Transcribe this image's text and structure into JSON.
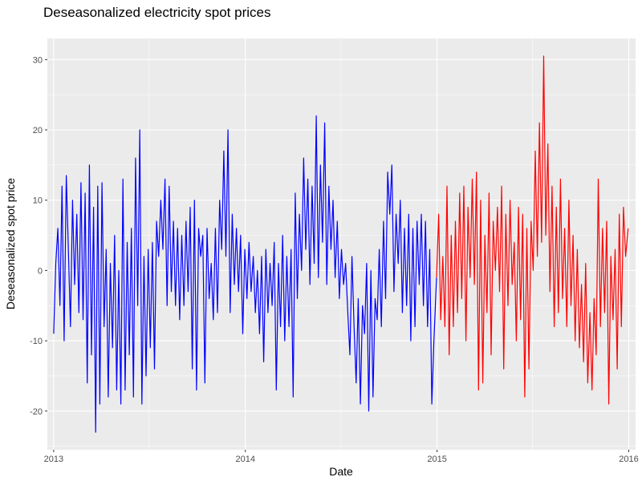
{
  "chart_data": {
    "type": "line",
    "title": "Deseasonalized electricity spot prices",
    "xlabel": "Date",
    "ylabel": "Deseasonalized spot price",
    "x_ticks": [
      "2013",
      "2014",
      "2015",
      "2016"
    ],
    "y_ticks": [
      "-20",
      "-10",
      "0",
      "10",
      "20",
      "30"
    ],
    "xlim": [
      "2012-12-20",
      "2016-01-14"
    ],
    "ylim": [
      -25.5,
      33
    ],
    "grid": true,
    "background": "#ebebeb",
    "series": [
      {
        "color": "#0000ff",
        "points": [
          [
            "2013-01-01",
            -9
          ],
          [
            "2013-01-05",
            1
          ],
          [
            "2013-01-09",
            6
          ],
          [
            "2013-01-13",
            -5
          ],
          [
            "2013-01-17",
            12
          ],
          [
            "2013-01-21",
            -10
          ],
          [
            "2013-01-25",
            13.5
          ],
          [
            "2013-01-29",
            3
          ],
          [
            "2013-02-02",
            -8
          ],
          [
            "2013-02-06",
            10
          ],
          [
            "2013-02-10",
            -2
          ],
          [
            "2013-02-14",
            8
          ],
          [
            "2013-02-18",
            -6
          ],
          [
            "2013-02-22",
            12.5
          ],
          [
            "2013-02-26",
            -7
          ],
          [
            "2013-03-02",
            11
          ],
          [
            "2013-03-06",
            -16
          ],
          [
            "2013-03-10",
            15
          ],
          [
            "2013-03-14",
            -12
          ],
          [
            "2013-03-18",
            9
          ],
          [
            "2013-03-22",
            -23
          ],
          [
            "2013-03-26",
            12
          ],
          [
            "2013-03-30",
            -19
          ],
          [
            "2013-04-03",
            12.5
          ],
          [
            "2013-04-07",
            -8
          ],
          [
            "2013-04-11",
            3
          ],
          [
            "2013-04-15",
            -18
          ],
          [
            "2013-04-19",
            1
          ],
          [
            "2013-04-23",
            -11
          ],
          [
            "2013-04-27",
            5
          ],
          [
            "2013-05-01",
            -17
          ],
          [
            "2013-05-05",
            0
          ],
          [
            "2013-05-09",
            -19
          ],
          [
            "2013-05-13",
            13
          ],
          [
            "2013-05-17",
            -17
          ],
          [
            "2013-05-21",
            4
          ],
          [
            "2013-05-25",
            -12
          ],
          [
            "2013-05-29",
            6
          ],
          [
            "2013-06-02",
            -18
          ],
          [
            "2013-06-06",
            16
          ],
          [
            "2013-06-10",
            -5
          ],
          [
            "2013-06-14",
            20
          ],
          [
            "2013-06-18",
            -19
          ],
          [
            "2013-06-22",
            2
          ],
          [
            "2013-06-26",
            -15
          ],
          [
            "2013-06-30",
            3
          ],
          [
            "2013-07-04",
            -11
          ],
          [
            "2013-07-08",
            4
          ],
          [
            "2013-07-12",
            -14
          ],
          [
            "2013-07-16",
            7
          ],
          [
            "2013-07-20",
            2
          ],
          [
            "2013-07-24",
            10
          ],
          [
            "2013-07-28",
            3
          ],
          [
            "2013-08-01",
            13
          ],
          [
            "2013-08-05",
            -5
          ],
          [
            "2013-08-09",
            12
          ],
          [
            "2013-08-13",
            -3
          ],
          [
            "2013-08-17",
            7
          ],
          [
            "2013-08-21",
            -5
          ],
          [
            "2013-08-25",
            6
          ],
          [
            "2013-08-29",
            -7
          ],
          [
            "2013-09-02",
            5
          ],
          [
            "2013-09-06",
            -5
          ],
          [
            "2013-09-10",
            7
          ],
          [
            "2013-09-14",
            -3
          ],
          [
            "2013-09-18",
            9
          ],
          [
            "2013-09-22",
            -14
          ],
          [
            "2013-09-26",
            10
          ],
          [
            "2013-09-30",
            -17
          ],
          [
            "2013-10-04",
            6
          ],
          [
            "2013-10-08",
            2
          ],
          [
            "2013-10-12",
            5
          ],
          [
            "2013-10-16",
            -16
          ],
          [
            "2013-10-20",
            6
          ],
          [
            "2013-10-24",
            -4
          ],
          [
            "2013-10-28",
            1
          ],
          [
            "2013-11-01",
            -7
          ],
          [
            "2013-11-05",
            6
          ],
          [
            "2013-11-09",
            -6
          ],
          [
            "2013-11-13",
            10
          ],
          [
            "2013-11-17",
            3
          ],
          [
            "2013-11-21",
            17
          ],
          [
            "2013-11-25",
            2
          ],
          [
            "2013-11-29",
            20
          ],
          [
            "2013-12-03",
            -6
          ],
          [
            "2013-12-07",
            8
          ],
          [
            "2013-12-11",
            -2
          ],
          [
            "2013-12-15",
            6
          ],
          [
            "2013-12-19",
            -3
          ],
          [
            "2013-12-23",
            5
          ],
          [
            "2013-12-27",
            -9
          ],
          [
            "2013-12-31",
            3
          ],
          [
            "2014-01-04",
            -4
          ],
          [
            "2014-01-08",
            4
          ],
          [
            "2014-01-12",
            -3
          ],
          [
            "2014-01-16",
            2
          ],
          [
            "2014-01-20",
            -6
          ],
          [
            "2014-01-24",
            0
          ],
          [
            "2014-01-28",
            -9
          ],
          [
            "2014-02-01",
            2
          ],
          [
            "2014-02-05",
            -13
          ],
          [
            "2014-02-09",
            3
          ],
          [
            "2014-02-13",
            -6
          ],
          [
            "2014-02-17",
            1
          ],
          [
            "2014-02-21",
            -5
          ],
          [
            "2014-02-25",
            4
          ],
          [
            "2014-03-01",
            -17
          ],
          [
            "2014-03-05",
            1
          ],
          [
            "2014-03-09",
            -8
          ],
          [
            "2014-03-13",
            5
          ],
          [
            "2014-03-17",
            -10
          ],
          [
            "2014-03-21",
            2
          ],
          [
            "2014-03-25",
            -8
          ],
          [
            "2014-03-29",
            3
          ],
          [
            "2014-04-02",
            -18
          ],
          [
            "2014-04-06",
            11
          ],
          [
            "2014-04-10",
            -4
          ],
          [
            "2014-04-14",
            8
          ],
          [
            "2014-04-18",
            0
          ],
          [
            "2014-04-22",
            16
          ],
          [
            "2014-04-26",
            3
          ],
          [
            "2014-04-30",
            13
          ],
          [
            "2014-05-04",
            -2
          ],
          [
            "2014-05-08",
            12
          ],
          [
            "2014-05-12",
            1
          ],
          [
            "2014-05-16",
            22
          ],
          [
            "2014-05-20",
            -1
          ],
          [
            "2014-05-24",
            15
          ],
          [
            "2014-05-28",
            4
          ],
          [
            "2014-06-01",
            21
          ],
          [
            "2014-06-05",
            -2
          ],
          [
            "2014-06-09",
            12
          ],
          [
            "2014-06-13",
            3
          ],
          [
            "2014-06-17",
            10
          ],
          [
            "2014-06-21",
            -1
          ],
          [
            "2014-06-25",
            7
          ],
          [
            "2014-06-29",
            -4
          ],
          [
            "2014-07-03",
            3
          ],
          [
            "2014-07-07",
            -2
          ],
          [
            "2014-07-11",
            1
          ],
          [
            "2014-07-15",
            -6
          ],
          [
            "2014-07-19",
            -12
          ],
          [
            "2014-07-23",
            2
          ],
          [
            "2014-07-27",
            -8
          ],
          [
            "2014-07-31",
            -16
          ],
          [
            "2014-08-04",
            -4
          ],
          [
            "2014-08-08",
            -19
          ],
          [
            "2014-08-12",
            -5
          ],
          [
            "2014-08-16",
            -9
          ],
          [
            "2014-08-20",
            1
          ],
          [
            "2014-08-24",
            -20
          ],
          [
            "2014-08-28",
            0
          ],
          [
            "2014-09-01",
            -18
          ],
          [
            "2014-09-05",
            -4
          ],
          [
            "2014-09-09",
            -7
          ],
          [
            "2014-09-13",
            3
          ],
          [
            "2014-09-17",
            -8
          ],
          [
            "2014-09-21",
            7
          ],
          [
            "2014-09-25",
            -4
          ],
          [
            "2014-09-29",
            14
          ],
          [
            "2014-10-03",
            8
          ],
          [
            "2014-10-07",
            15
          ],
          [
            "2014-10-11",
            -3
          ],
          [
            "2014-10-15",
            8
          ],
          [
            "2014-10-19",
            1
          ],
          [
            "2014-10-23",
            10
          ],
          [
            "2014-10-27",
            -6
          ],
          [
            "2014-10-31",
            6
          ],
          [
            "2014-11-04",
            -5
          ],
          [
            "2014-11-08",
            8
          ],
          [
            "2014-11-12",
            -10
          ],
          [
            "2014-11-16",
            6
          ],
          [
            "2014-11-20",
            -8
          ],
          [
            "2014-11-24",
            7
          ],
          [
            "2014-11-28",
            -2
          ],
          [
            "2014-12-02",
            8
          ],
          [
            "2014-12-06",
            -5
          ],
          [
            "2014-12-10",
            7
          ],
          [
            "2014-12-14",
            -8
          ],
          [
            "2014-12-18",
            3
          ],
          [
            "2014-12-22",
            -19
          ],
          [
            "2014-12-26",
            -10
          ],
          [
            "2014-12-31",
            -1
          ]
        ]
      },
      {
        "color": "#ff0000",
        "points": [
          [
            "2014-12-31",
            -1
          ],
          [
            "2015-01-04",
            8
          ],
          [
            "2015-01-08",
            -7
          ],
          [
            "2015-01-12",
            2
          ],
          [
            "2015-01-16",
            -8
          ],
          [
            "2015-01-20",
            12
          ],
          [
            "2015-01-24",
            -12
          ],
          [
            "2015-01-28",
            5
          ],
          [
            "2015-02-01",
            -8
          ],
          [
            "2015-02-05",
            7
          ],
          [
            "2015-02-09",
            -6
          ],
          [
            "2015-02-13",
            11
          ],
          [
            "2015-02-17",
            -4
          ],
          [
            "2015-02-21",
            12
          ],
          [
            "2015-02-25",
            -10
          ],
          [
            "2015-03-01",
            9
          ],
          [
            "2015-03-05",
            -1
          ],
          [
            "2015-03-09",
            13
          ],
          [
            "2015-03-13",
            -2
          ],
          [
            "2015-03-17",
            14
          ],
          [
            "2015-03-21",
            -17
          ],
          [
            "2015-03-25",
            10
          ],
          [
            "2015-03-29",
            -16
          ],
          [
            "2015-04-02",
            5
          ],
          [
            "2015-04-06",
            -6
          ],
          [
            "2015-04-10",
            11
          ],
          [
            "2015-04-14",
            -12
          ],
          [
            "2015-04-18",
            7
          ],
          [
            "2015-04-22",
            0
          ],
          [
            "2015-04-26",
            9
          ],
          [
            "2015-04-30",
            -3
          ],
          [
            "2015-05-04",
            12
          ],
          [
            "2015-05-08",
            -14
          ],
          [
            "2015-05-12",
            8
          ],
          [
            "2015-05-16",
            -5
          ],
          [
            "2015-05-20",
            10
          ],
          [
            "2015-05-24",
            -2
          ],
          [
            "2015-05-28",
            4
          ],
          [
            "2015-06-01",
            -10
          ],
          [
            "2015-06-05",
            9
          ],
          [
            "2015-06-09",
            -7
          ],
          [
            "2015-06-13",
            8
          ],
          [
            "2015-06-17",
            -18
          ],
          [
            "2015-06-21",
            6
          ],
          [
            "2015-06-25",
            -14
          ],
          [
            "2015-06-29",
            7
          ],
          [
            "2015-07-03",
            0
          ],
          [
            "2015-07-07",
            17
          ],
          [
            "2015-07-11",
            2
          ],
          [
            "2015-07-15",
            21
          ],
          [
            "2015-07-19",
            4
          ],
          [
            "2015-07-23",
            30.5
          ],
          [
            "2015-07-27",
            5
          ],
          [
            "2015-07-31",
            18
          ],
          [
            "2015-08-04",
            -3
          ],
          [
            "2015-08-08",
            12
          ],
          [
            "2015-08-12",
            -8
          ],
          [
            "2015-08-16",
            9
          ],
          [
            "2015-08-20",
            -6
          ],
          [
            "2015-08-24",
            13
          ],
          [
            "2015-08-28",
            -4
          ],
          [
            "2015-09-01",
            6
          ],
          [
            "2015-09-05",
            -8
          ],
          [
            "2015-09-09",
            10
          ],
          [
            "2015-09-13",
            -5
          ],
          [
            "2015-09-17",
            5
          ],
          [
            "2015-09-21",
            -10
          ],
          [
            "2015-09-25",
            3
          ],
          [
            "2015-09-29",
            -11
          ],
          [
            "2015-10-03",
            -2
          ],
          [
            "2015-10-07",
            -13
          ],
          [
            "2015-10-11",
            1
          ],
          [
            "2015-10-15",
            -16
          ],
          [
            "2015-10-19",
            -6
          ],
          [
            "2015-10-23",
            -17
          ],
          [
            "2015-10-27",
            -4
          ],
          [
            "2015-10-31",
            -12
          ],
          [
            "2015-11-04",
            13
          ],
          [
            "2015-11-08",
            -8
          ],
          [
            "2015-11-12",
            6
          ],
          [
            "2015-11-16",
            -6
          ],
          [
            "2015-11-20",
            7
          ],
          [
            "2015-11-24",
            -19
          ],
          [
            "2015-11-28",
            2
          ],
          [
            "2015-12-02",
            -7
          ],
          [
            "2015-12-06",
            3
          ],
          [
            "2015-12-10",
            -14
          ],
          [
            "2015-12-14",
            8
          ],
          [
            "2015-12-18",
            -8
          ],
          [
            "2015-12-22",
            9
          ],
          [
            "2015-12-26",
            2
          ],
          [
            "2015-12-31",
            6
          ]
        ]
      }
    ]
  }
}
